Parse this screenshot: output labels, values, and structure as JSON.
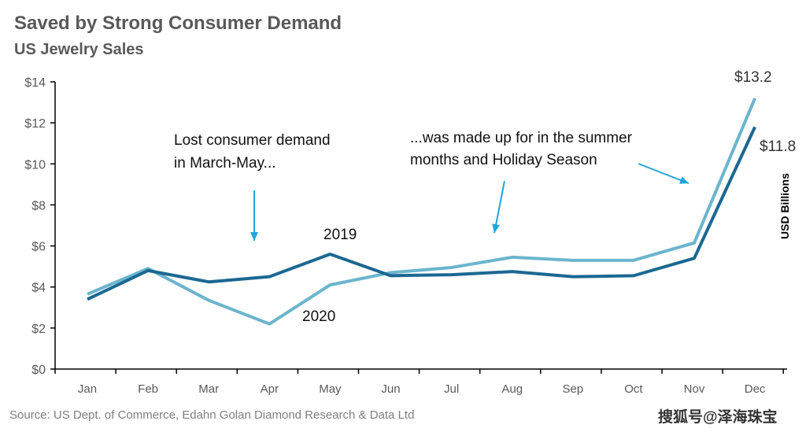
{
  "chart_data": {
    "type": "line",
    "title": "Saved by Strong Consumer Demand",
    "subtitle": "US Jewelry Sales",
    "ylabel": "USD Billions",
    "xlabel": "",
    "ylim": [
      0,
      14
    ],
    "yticks": [
      0,
      2,
      4,
      6,
      8,
      10,
      12,
      14
    ],
    "ytick_labels": [
      "$0",
      "$2",
      "$4",
      "$6",
      "$8",
      "$10",
      "$12",
      "$14"
    ],
    "categories": [
      "Jan",
      "Feb",
      "Mar",
      "Apr",
      "May",
      "Jun",
      "Jul",
      "Aug",
      "Sep",
      "Oct",
      "Nov",
      "Dec"
    ],
    "series": [
      {
        "name": "2019",
        "color": "#1b6892",
        "values": [
          3.4,
          4.8,
          4.25,
          4.5,
          5.6,
          4.55,
          4.6,
          4.75,
          4.5,
          4.55,
          5.4,
          11.8
        ]
      },
      {
        "name": "2020",
        "color": "#6bb5cd",
        "values": [
          3.65,
          4.9,
          3.35,
          2.2,
          4.1,
          4.7,
          4.95,
          5.45,
          5.3,
          5.3,
          6.15,
          13.2
        ]
      }
    ],
    "data_labels": [
      "$13.2",
      "$11.8"
    ],
    "annotations": [
      "Lost consumer demand",
      "in March-May...",
      "...was made up for in the summer",
      "months and Holiday Season"
    ],
    "grid": false,
    "legend": "inline labels"
  },
  "source": "Source: US Dept. of Commerce, Edahn Golan Diamond Research & Data Ltd",
  "watermark": "搜狐号@泽海珠宝",
  "arrow_color": "#1fa5dc"
}
